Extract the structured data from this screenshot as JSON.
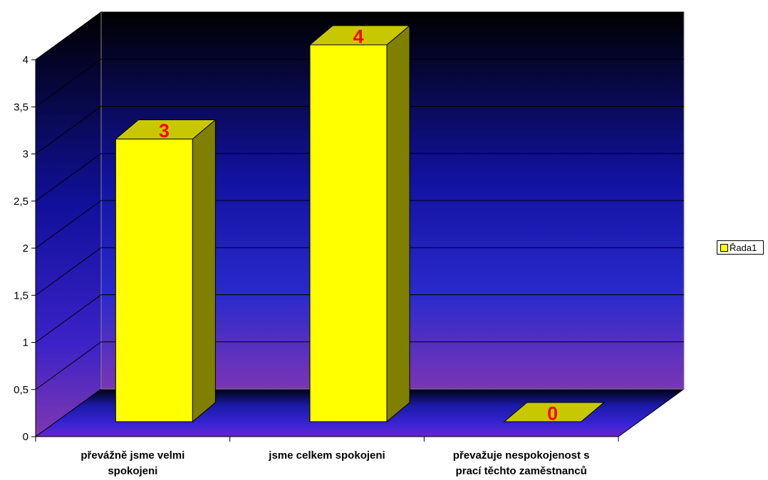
{
  "chart_data": {
    "type": "bar",
    "categories": [
      [
        "převážně jsme velmi",
        "spokojeni"
      ],
      [
        "jsme celkem spokojeni"
      ],
      [
        "převažuje nespokojenost s",
        "prací těchto zaměstnanců"
      ]
    ],
    "series": [
      {
        "name": "Řada1",
        "values": [
          3,
          4,
          0
        ]
      }
    ],
    "data_labels": [
      "3",
      "4",
      "0"
    ],
    "y_ticks": [
      "0",
      "0,5",
      "1",
      "1,5",
      "2",
      "2,5",
      "3",
      "3,5",
      "4"
    ],
    "ylim": [
      0,
      4
    ],
    "grid": true,
    "legend_position": "right",
    "three_d": true,
    "colors": {
      "bar_front": "#ffff00",
      "bar_top": "#c8c800",
      "bar_side": "#808000",
      "data_label": "#ff0000",
      "wall_top": "#000000",
      "wall_bottom": "#7a35b5",
      "floor": "#4f1fd0"
    }
  },
  "legend": {
    "label": "Řada1"
  }
}
